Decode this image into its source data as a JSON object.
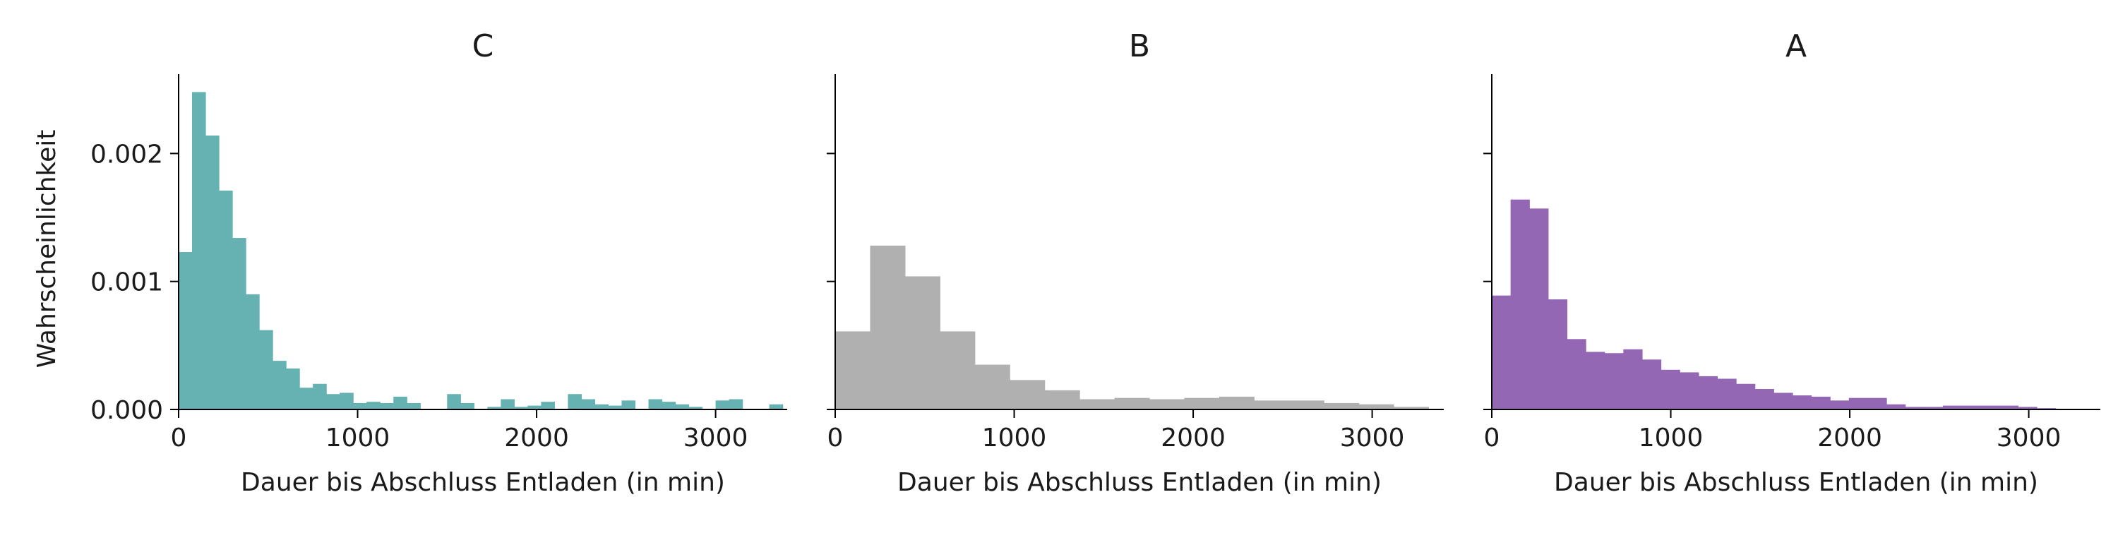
{
  "chart_data": [
    {
      "type": "bar",
      "title": "C",
      "xlabel": "Dauer bis Abschluss Entladen (in min)",
      "ylabel": "Wahrscheinlichkeit",
      "color": "#66b2b2",
      "xlim": [
        0,
        3400
      ],
      "ylim": [
        0,
        0.00262
      ],
      "xticks": [
        "0",
        "1000",
        "2000",
        "3000"
      ],
      "yticks": [
        "0.000",
        "0.001",
        "0.002"
      ],
      "bin_edges": [
        0,
        75,
        150,
        225,
        300,
        375,
        450,
        525,
        600,
        675,
        750,
        825,
        900,
        975,
        1050,
        1125,
        1200,
        1275,
        1350,
        1425,
        1500,
        1575,
        1650,
        1725,
        1800,
        1875,
        1950,
        2025,
        2100,
        2175,
        2250,
        2325,
        2400,
        2475,
        2550,
        2625,
        2700,
        2775,
        2850,
        2925,
        3000,
        3075,
        3150,
        3225,
        3300,
        3375
      ],
      "values": [
        0.00123,
        0.00248,
        0.00214,
        0.00171,
        0.00134,
        0.0009,
        0.00062,
        0.00038,
        0.00032,
        0.00017,
        0.0002,
        0.00012,
        0.00013,
        5e-05,
        6e-05,
        5e-05,
        0.0001,
        5e-05,
        0.0,
        0.0,
        0.00012,
        5e-05,
        0.0,
        2e-05,
        8e-05,
        2e-05,
        3e-05,
        6e-05,
        0.0,
        0.00012,
        8e-05,
        4e-05,
        3e-05,
        7e-05,
        0.0,
        8e-05,
        6e-05,
        4e-05,
        2e-05,
        0.0,
        7e-05,
        8e-05,
        0.0,
        0.0,
        4e-05
      ]
    },
    {
      "type": "bar",
      "title": "B",
      "xlabel": "Dauer bis Abschluss Entladen (in min)",
      "ylabel": "",
      "color": "#b0b0b0",
      "xlim": [
        0,
        3400
      ],
      "ylim": [
        0,
        0.00262
      ],
      "xticks": [
        "0",
        "1000",
        "2000",
        "3000"
      ],
      "yticks": [
        "",
        "",
        ""
      ],
      "bin_edges": [
        0,
        195,
        390,
        585,
        780,
        975,
        1170,
        1365,
        1560,
        1755,
        1950,
        2145,
        2340,
        2535,
        2730,
        2925,
        3120,
        3315
      ],
      "values": [
        0.00061,
        0.00128,
        0.00104,
        0.00061,
        0.00035,
        0.00023,
        0.00015,
        8e-05,
        9e-05,
        8e-05,
        9e-05,
        0.0001,
        7e-05,
        7e-05,
        5e-05,
        4e-05,
        2e-05
      ]
    },
    {
      "type": "bar",
      "title": "A",
      "xlabel": "Dauer bis Abschluss Entladen (in min)",
      "ylabel": "",
      "color": "#9467b4",
      "xlim": [
        0,
        3400
      ],
      "ylim": [
        0,
        0.00262
      ],
      "xticks": [
        "0",
        "1000",
        "2000",
        "3000"
      ],
      "yticks": [
        "",
        "",
        ""
      ],
      "bin_edges": [
        0,
        105,
        210,
        315,
        420,
        525,
        630,
        735,
        840,
        945,
        1050,
        1155,
        1260,
        1365,
        1470,
        1575,
        1680,
        1785,
        1890,
        1995,
        2100,
        2205,
        2310,
        2415,
        2520,
        2625,
        2730,
        2835,
        2940,
        3045,
        3150
      ],
      "values": [
        0.00089,
        0.00164,
        0.00157,
        0.00086,
        0.00055,
        0.00045,
        0.00044,
        0.00047,
        0.00039,
        0.00031,
        0.00029,
        0.00026,
        0.00024,
        0.0002,
        0.00016,
        0.00013,
        0.00011,
        0.0001,
        7e-05,
        9e-05,
        9e-05,
        4e-05,
        2e-05,
        2e-05,
        3e-05,
        3e-05,
        3e-05,
        3e-05,
        2e-05,
        1e-05
      ]
    }
  ]
}
